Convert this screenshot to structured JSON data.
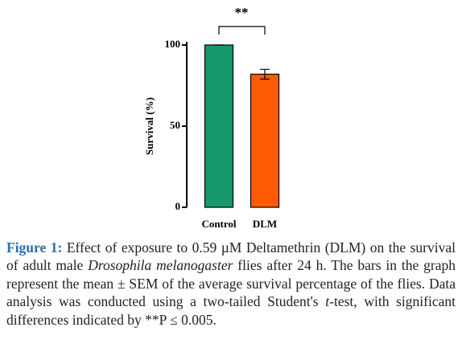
{
  "chart_data": {
    "type": "bar",
    "annotation": "**",
    "ylabel": "Survival (%)",
    "categories": [
      "Control",
      "DLM"
    ],
    "values": [
      100,
      82
    ],
    "errors": [
      0,
      3
    ],
    "colors": [
      "#15996a",
      "#ff5a05"
    ],
    "ylim": [
      0,
      100
    ],
    "yticks": [
      0,
      50,
      100
    ]
  },
  "caption": {
    "label": "Figure 1:",
    "segments": [
      {
        "text": " Effect of exposure to 0.59 µM Deltamethrin (DLM) on the survival of adult male ",
        "italic": false
      },
      {
        "text": "Drosophila melanogaster",
        "italic": true
      },
      {
        "text": " flies after 24 h. The bars in the graph represent the mean ± SEM of the average survival percentage of the flies. Data analysis was conducted using a two-tailed Student's ",
        "italic": false
      },
      {
        "text": "t",
        "italic": true
      },
      {
        "text": "-test, with significant differences indicated by **P ≤ 0.005.",
        "italic": false
      }
    ]
  }
}
